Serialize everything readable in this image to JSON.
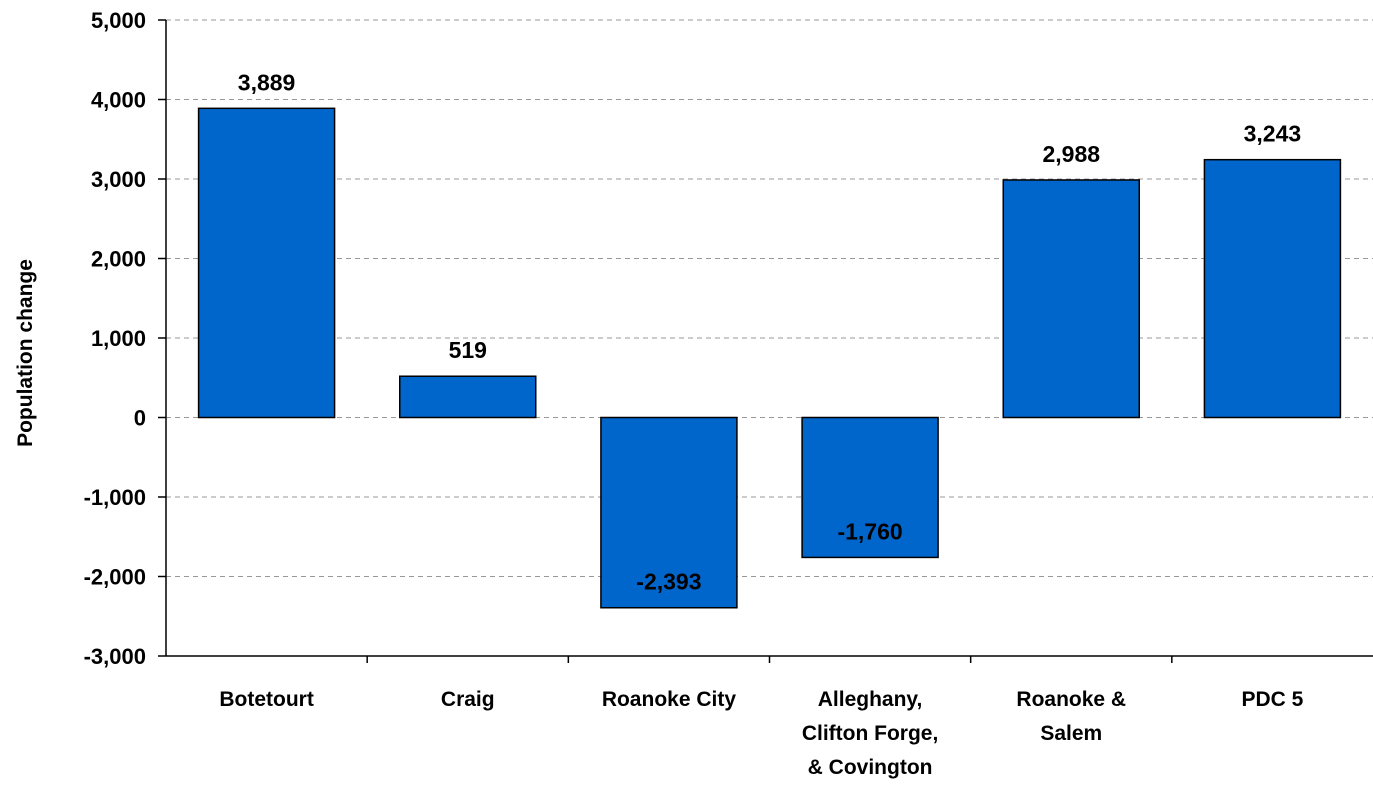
{
  "chart_data": {
    "type": "bar",
    "title": "",
    "xlabel": "",
    "ylabel": "Population change",
    "categories": [
      [
        "Botetourt"
      ],
      [
        "Craig"
      ],
      [
        "Roanoke  City"
      ],
      [
        "Alleghany,",
        "Clifton Forge,",
        "& Covington"
      ],
      [
        "Roanoke &",
        "Salem"
      ],
      [
        "PDC 5"
      ]
    ],
    "values": [
      3889,
      519,
      -2393,
      -1760,
      2988,
      3243
    ],
    "value_labels": [
      "3,889",
      "519",
      "-2,393",
      "-1,760",
      "2,988",
      "3,243"
    ],
    "ylim": [
      -3000,
      5000
    ],
    "yticks": [
      5000,
      4000,
      3000,
      2000,
      1000,
      0,
      -1000,
      -2000,
      -3000
    ],
    "ytick_labels": [
      "5,000",
      "4,000",
      "3,000",
      "2,000",
      "1,000",
      "0",
      "-1,000",
      "-2,000",
      "-3,000"
    ],
    "grid": "horizontal dashed",
    "legend": "none",
    "colors": {
      "bar": "#0066CC",
      "bar_edge": "#000000",
      "grid": "#999999",
      "axis": "#000000"
    }
  }
}
